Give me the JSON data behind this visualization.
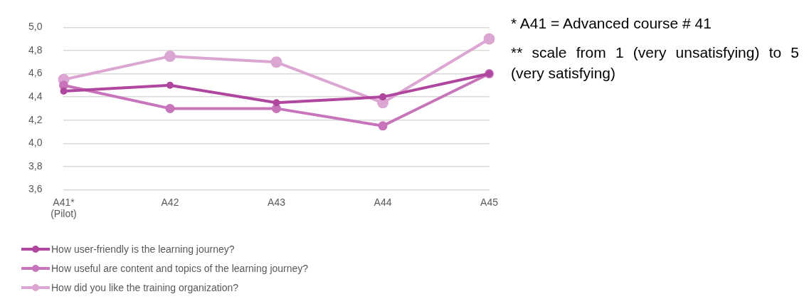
{
  "chart_data": {
    "type": "line",
    "categories": [
      "A41*\n(Pilot)",
      "A42",
      "A43",
      "A44",
      "A45"
    ],
    "series": [
      {
        "name": "How user-friendly is the learning journey?",
        "color": "#b0479f",
        "values": [
          4.45,
          4.5,
          4.35,
          4.4,
          4.6
        ]
      },
      {
        "name": "How useful are content and topics of the learning journey?",
        "color": "#c774bb",
        "values": [
          4.5,
          4.3,
          4.3,
          4.15,
          4.6
        ]
      },
      {
        "name": "How did you like the training organization?",
        "color": "#dca6d3",
        "values": [
          4.55,
          4.75,
          4.7,
          4.35,
          4.9
        ]
      }
    ],
    "ylim": [
      3.6,
      5.0
    ],
    "yticks": [
      {
        "value": 3.6,
        "label": "3,6"
      },
      {
        "value": 3.8,
        "label": "3,8"
      },
      {
        "value": 4.0,
        "label": "4,0"
      },
      {
        "value": 4.2,
        "label": "4,2"
      },
      {
        "value": 4.4,
        "label": "4,4"
      },
      {
        "value": 4.6,
        "label": "4,6"
      },
      {
        "value": 4.8,
        "label": "4,8"
      },
      {
        "value": 5.0,
        "label": "5,0"
      }
    ],
    "grid": "y",
    "legend": "bottom",
    "marker": "circle",
    "line_style": "solid",
    "annotations": [
      "*  A41 = Advanced course # 41",
      "**   scale from 1 (very unsatisfying) to 5 (very satisfying)"
    ]
  }
}
